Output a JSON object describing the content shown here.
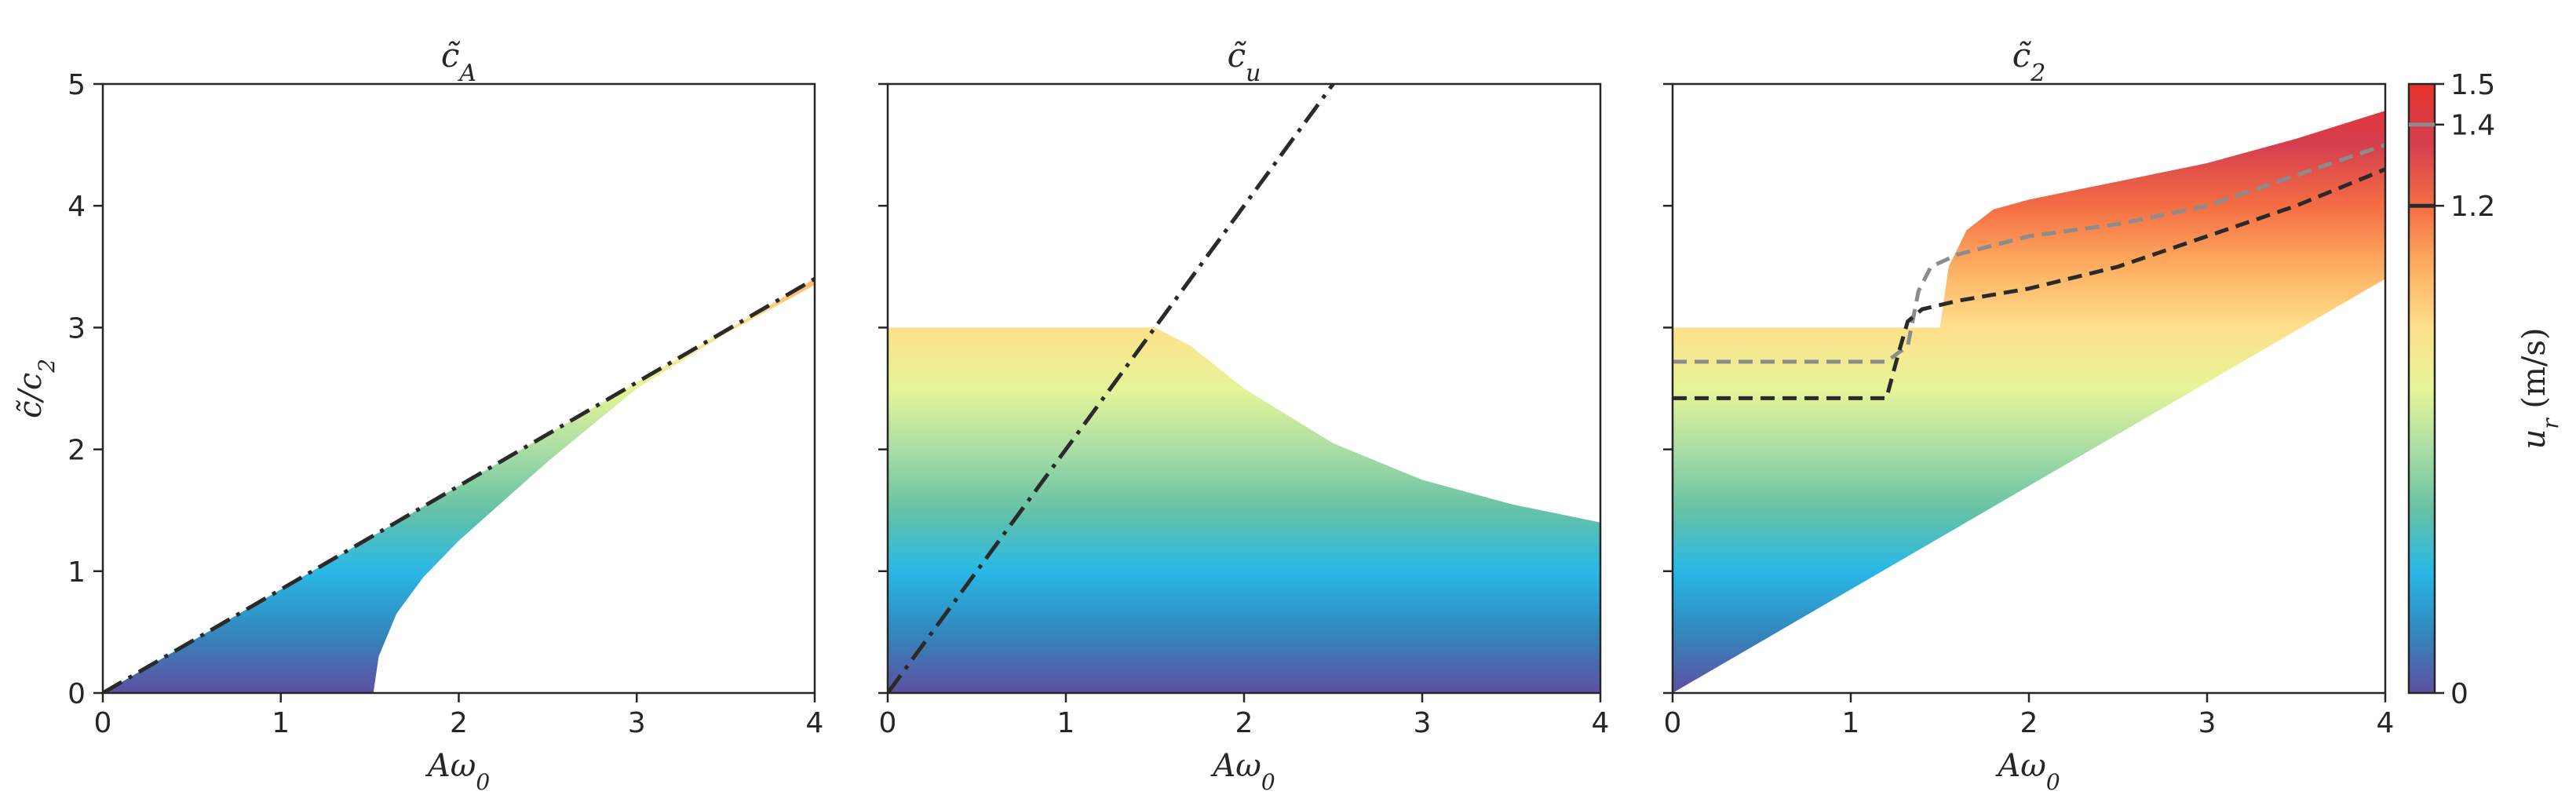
{
  "figure": {
    "colorbar": {
      "label": "u_r (m/s)",
      "label_var": "u",
      "label_sub": "r",
      "label_units": " (m/s)",
      "range": [
        0,
        1.5
      ],
      "ticks": [
        0,
        1.2,
        1.4,
        1.5
      ],
      "tick_labels": [
        "0",
        "1.2",
        "1.4",
        "1.5"
      ],
      "colormap": [
        "#5e4fa2",
        "#3288bd",
        "#29b8e6",
        "#66c2a5",
        "#abdda4",
        "#e6f598",
        "#fee08b",
        "#fdae61",
        "#f46d43",
        "#d53e4f",
        "#e8322c"
      ]
    },
    "colors": {
      "dashdot_line": "#2a2a2a",
      "dashed_dark": "#2a2a2a",
      "dashed_gray": "#8c8c8c",
      "axes": "#262626"
    }
  },
  "chart_data": [
    {
      "type": "area",
      "title": "c̃_A",
      "title_base": "c̃",
      "title_sub": "A",
      "xlabel": "Aω_0",
      "xlabel_base": "Aω",
      "xlabel_sub": "0",
      "ylabel": "c̃/c_2",
      "ylabel_base": "c̃/c",
      "ylabel_sub": "2",
      "xlim": [
        0,
        4
      ],
      "ylim": [
        0,
        5
      ],
      "xticks": [
        0,
        1,
        2,
        3,
        4
      ],
      "yticks": [
        0,
        1,
        2,
        3,
        4,
        5
      ],
      "grid": false,
      "dashdot_line": {
        "x": [
          0,
          4
        ],
        "y": [
          0,
          3.4
        ]
      },
      "colored_region": {
        "upper_boundary": {
          "x": [
            0,
            4
          ],
          "y": [
            0,
            3.4
          ]
        },
        "lower_boundary": {
          "x": [
            1.52,
            1.55,
            1.65,
            1.8,
            2.0,
            2.5,
            3.0,
            3.5,
            4.0
          ],
          "y": [
            0,
            0.3,
            0.65,
            0.95,
            1.25,
            1.9,
            2.5,
            2.95,
            3.35
          ]
        }
      }
    },
    {
      "type": "area",
      "title": "c̃_u",
      "title_base": "c̃",
      "title_sub": "u",
      "xlabel": "Aω_0",
      "xlabel_base": "Aω",
      "xlabel_sub": "0",
      "xlim": [
        0,
        4
      ],
      "ylim": [
        0,
        5
      ],
      "xticks": [
        0,
        1,
        2,
        3,
        4
      ],
      "yticks": [
        0,
        1,
        2,
        3,
        4,
        5
      ],
      "grid": false,
      "dashdot_line": {
        "x": [
          0,
          2.5
        ],
        "y": [
          0,
          5
        ]
      },
      "colored_region": {
        "upper_boundary": {
          "x": [
            0,
            1.5,
            1.7,
            2.0,
            2.5,
            3.0,
            3.5,
            4.0
          ],
          "y": [
            3.0,
            3.0,
            2.85,
            2.5,
            2.05,
            1.75,
            1.55,
            1.4
          ]
        },
        "lower_boundary": {
          "x": [
            0,
            4
          ],
          "y": [
            0,
            0
          ]
        }
      }
    },
    {
      "type": "area",
      "title": "c̃_2",
      "title_base": "c̃",
      "title_sub": "2",
      "xlabel": "Aω_0",
      "xlabel_base": "Aω",
      "xlabel_sub": "0",
      "xlim": [
        0,
        4
      ],
      "ylim": [
        0,
        5
      ],
      "xticks": [
        0,
        1,
        2,
        3,
        4
      ],
      "yticks": [
        0,
        1,
        2,
        3,
        4,
        5
      ],
      "grid": false,
      "colored_region": {
        "upper_boundary": {
          "x": [
            0,
            1.5,
            1.55,
            1.65,
            1.8,
            2.0,
            2.5,
            3.0,
            3.5,
            4.0
          ],
          "y": [
            3.0,
            3.0,
            3.5,
            3.8,
            3.97,
            4.05,
            4.2,
            4.35,
            4.55,
            4.78
          ]
        },
        "lower_boundary": {
          "x": [
            0,
            4
          ],
          "y": [
            0,
            3.4
          ]
        }
      },
      "series": [
        {
          "style": "dashed",
          "color": "#8c8c8c",
          "u_r": 1.4,
          "x": [
            0,
            1.2,
            1.32,
            1.38,
            1.45,
            1.6,
            2.0,
            2.5,
            3.0,
            3.5,
            4.0
          ],
          "y": [
            2.72,
            2.72,
            2.85,
            3.3,
            3.5,
            3.6,
            3.75,
            3.85,
            4.0,
            4.25,
            4.5
          ]
        },
        {
          "style": "dashed",
          "color": "#2a2a2a",
          "u_r": 1.2,
          "x": [
            0,
            1.2,
            1.27,
            1.32,
            1.4,
            1.6,
            2.0,
            2.5,
            3.0,
            3.5,
            4.0
          ],
          "y": [
            2.42,
            2.42,
            2.8,
            3.05,
            3.15,
            3.22,
            3.32,
            3.5,
            3.75,
            4.0,
            4.3
          ]
        }
      ]
    }
  ]
}
